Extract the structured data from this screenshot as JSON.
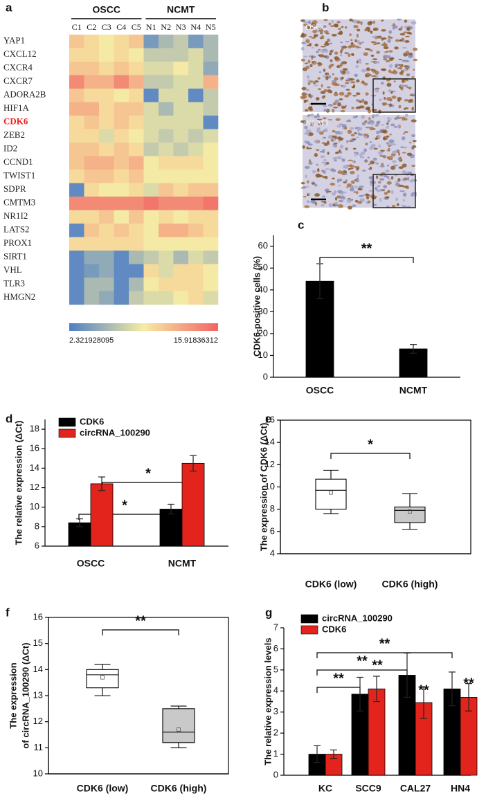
{
  "panel_labels": [
    "a",
    "b",
    "c",
    "d",
    "e",
    "f",
    "g"
  ],
  "panel_b": {
    "labels": [
      "OSCC",
      "NCMT"
    ]
  },
  "chart_data": [
    {
      "type": "heatmap",
      "column_groups": [
        "OSCC",
        "NCMT"
      ],
      "columns": [
        "C1",
        "C2",
        "C3",
        "C4",
        "C5",
        "N1",
        "N2",
        "N3",
        "N4",
        "N5"
      ],
      "rows": [
        "YAP1",
        "CXCL12",
        "CXCR4",
        "CXCR7",
        "ADORA2B",
        "HIF1A",
        "CDK6",
        "ZEB2",
        "ID2",
        "CCND1",
        "TWIST1",
        "SDPR",
        "CMTM3",
        "NR1I2",
        "LATS2",
        "PROX1",
        "SIRT1",
        "VHL",
        "TLR3",
        "HMGN2"
      ],
      "row_label_colors": [
        "#222222",
        "#222222",
        "#222222",
        "#222222",
        "#222222",
        "#222222",
        "#e8231f",
        "#222222",
        "#222222",
        "#222222",
        "#222222",
        "#222222",
        "#222222",
        "#222222",
        "#222222",
        "#222222",
        "#222222",
        "#222222",
        "#222222",
        "#222222"
      ],
      "values": [
        [
          11,
          10,
          9,
          10,
          11,
          4,
          6,
          7,
          4,
          6
        ],
        [
          10,
          10,
          9,
          10,
          9,
          7,
          7,
          7,
          8,
          6
        ],
        [
          11,
          11,
          10,
          11,
          10,
          8,
          8,
          9,
          8,
          5
        ],
        [
          14,
          12,
          12,
          14,
          12,
          7,
          7,
          8,
          8,
          12
        ],
        [
          11,
          10,
          10,
          9,
          10,
          3,
          8,
          8,
          3,
          7
        ],
        [
          12,
          12,
          10,
          11,
          11,
          8,
          6,
          8,
          8,
          7
        ],
        [
          10,
          11,
          10,
          11,
          10,
          8,
          8,
          8,
          8,
          3
        ],
        [
          10,
          10,
          8,
          10,
          9,
          8,
          7,
          8,
          7,
          8
        ],
        [
          11,
          11,
          10,
          11,
          10,
          7,
          8,
          7,
          8,
          9
        ],
        [
          11,
          12,
          12,
          11,
          12,
          9,
          10,
          10,
          10,
          9
        ],
        [
          10,
          11,
          11,
          10,
          11,
          9,
          9,
          9,
          9,
          9
        ],
        [
          3,
          10,
          9,
          9,
          10,
          8,
          11,
          10,
          11,
          11
        ],
        [
          14,
          14,
          14,
          14,
          14,
          15,
          14,
          14,
          14,
          15
        ],
        [
          10,
          10,
          11,
          9,
          11,
          9,
          10,
          9,
          10,
          10
        ],
        [
          3,
          11,
          10,
          11,
          10,
          9,
          12,
          12,
          11,
          10
        ],
        [
          10,
          10,
          10,
          10,
          10,
          9,
          9,
          9,
          9,
          9
        ],
        [
          3,
          5,
          5,
          3,
          6,
          7,
          8,
          6,
          8,
          7
        ],
        [
          3,
          4,
          5,
          3,
          3,
          10,
          8,
          10,
          10,
          9
        ],
        [
          3,
          6,
          6,
          3,
          6,
          9,
          10,
          10,
          10,
          9
        ],
        [
          3,
          6,
          5,
          3,
          7,
          8,
          8,
          9,
          10,
          8
        ]
      ],
      "clim": [
        2.321928095,
        15.91836312
      ],
      "colors": [
        "#4f7fc4",
        "#f7eca4",
        "#f26464"
      ]
    },
    {
      "type": "bar",
      "ylabel": "CDK6-positive cells (%)",
      "categories": [
        "OSCC",
        "NCMT"
      ],
      "values": [
        44,
        13
      ],
      "errors": [
        8,
        2
      ],
      "color": "#000000",
      "ylim": [
        0,
        65
      ],
      "yticks": [
        0,
        10,
        20,
        30,
        40,
        50,
        60
      ],
      "annotations": [
        {
          "text": "**"
        }
      ]
    },
    {
      "type": "bar",
      "ylabel": [
        "The relative expression (ΔCt)"
      ],
      "categories": [
        "OSCC",
        "NCMT"
      ],
      "series": [
        {
          "name": "CDK6",
          "color": "#000000",
          "values": [
            8.4,
            9.8
          ],
          "errors": [
            0.4,
            0.5
          ]
        },
        {
          "name": "circRNA_100290",
          "color": "#e3241d",
          "values": [
            12.4,
            14.5
          ],
          "errors": [
            0.7,
            0.8
          ]
        }
      ],
      "ylim": [
        6,
        19
      ],
      "yticks": [
        6,
        8,
        10,
        12,
        14,
        16,
        18
      ],
      "annotations": [
        {
          "text": "*"
        },
        {
          "text": "*"
        }
      ]
    },
    {
      "type": "box",
      "ylabel": [
        "The expression of CDK6 (ΔCt)"
      ],
      "categories": [
        "CDK6 (low)",
        "CDK6 (high)"
      ],
      "colors": [
        "#ffffff",
        "#c9c9c9"
      ],
      "min": [
        7.6,
        6.2
      ],
      "q1": [
        8.0,
        6.8
      ],
      "median": [
        9.7,
        7.9
      ],
      "q3": [
        10.7,
        8.2
      ],
      "max": [
        11.5,
        9.4
      ],
      "mean": [
        9.5,
        7.8
      ],
      "ylim": [
        4,
        16
      ],
      "yticks": [
        4,
        6,
        8,
        10,
        12,
        14,
        16
      ],
      "annotations": [
        {
          "text": "*"
        }
      ]
    },
    {
      "type": "box",
      "ylabel": [
        "The expression",
        "of circRNA_100290 (ΔCt)"
      ],
      "categories": [
        "CDK6 (low)",
        "CDK6 (high)"
      ],
      "colors": [
        "#ffffff",
        "#c9c9c9"
      ],
      "min": [
        13.0,
        11.0
      ],
      "q1": [
        13.3,
        11.2
      ],
      "median": [
        13.8,
        11.6
      ],
      "q3": [
        14.0,
        12.5
      ],
      "max": [
        14.2,
        12.6
      ],
      "mean": [
        13.7,
        11.7
      ],
      "ylim": [
        10,
        16
      ],
      "yticks": [
        10,
        11,
        12,
        13,
        14,
        15,
        16
      ],
      "annotations": [
        {
          "text": "**"
        }
      ]
    },
    {
      "type": "bar",
      "ylabel": [
        "The relative expression levels"
      ],
      "categories": [
        "KC",
        "SCC9",
        "CAL27",
        "HN4"
      ],
      "series": [
        {
          "name": "circRNA_100290",
          "color": "#000000",
          "values": [
            1.0,
            3.85,
            4.75,
            4.1
          ],
          "errors": [
            0.4,
            0.8,
            1.05,
            0.8
          ]
        },
        {
          "name": "CDK6",
          "color": "#e3241d",
          "values": [
            1.0,
            4.1,
            3.45,
            3.7
          ],
          "errors": [
            0.2,
            0.6,
            0.75,
            0.65
          ]
        }
      ],
      "ylim": [
        0,
        7
      ],
      "yticks": [
        0,
        1,
        2,
        3,
        4,
        5,
        6,
        7
      ],
      "annotations": [
        {
          "text": "**"
        },
        {
          "text": "**"
        },
        {
          "text": "**"
        },
        {
          "text": "**"
        },
        {
          "text": "**"
        },
        {
          "text": "**"
        }
      ]
    }
  ]
}
